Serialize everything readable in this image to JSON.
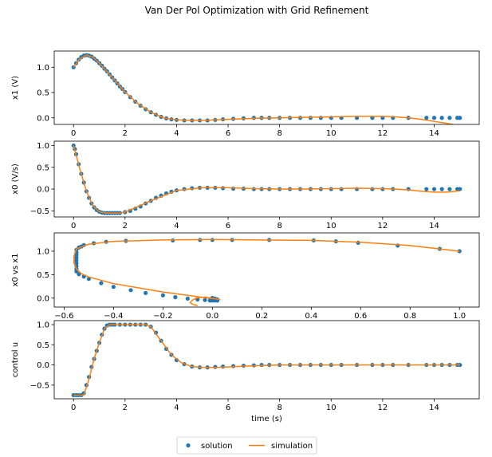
{
  "figure": {
    "title": "Van Der Pol Optimization with Grid Refinement",
    "legend": [
      {
        "label": "solution",
        "kind": "marker",
        "color": "#1f77b4"
      },
      {
        "label": "simulation",
        "kind": "line",
        "color": "#ff7f0e"
      }
    ],
    "legend_placement": "bottom-center"
  },
  "colors": {
    "solution": "#1f77b4",
    "simulation": "#ff7f0e",
    "axes": "#000000"
  },
  "chart_data": [
    {
      "type": "scatter",
      "ylabel": "x1 (V)",
      "xlabel": "",
      "xlim": [
        -0.75,
        15.75
      ],
      "ylim": [
        -0.13,
        1.32
      ],
      "xticks": [
        0,
        2,
        4,
        6,
        8,
        10,
        12,
        14
      ],
      "yticks": [
        0.0,
        0.5,
        1.0
      ],
      "ytick_labels": [
        "0.0",
        "0.5",
        "1.0"
      ],
      "series": [
        {
          "name": "solution",
          "style": "markers",
          "x": [
            0,
            0.1,
            0.2,
            0.3,
            0.4,
            0.5,
            0.6,
            0.7,
            0.8,
            0.9,
            1.0,
            1.1,
            1.2,
            1.3,
            1.4,
            1.5,
            1.6,
            1.7,
            1.8,
            1.9,
            2.0,
            2.2,
            2.4,
            2.6,
            2.8,
            3.0,
            3.2,
            3.4,
            3.6,
            3.8,
            4.0,
            4.3,
            4.6,
            4.9,
            5.2,
            5.5,
            5.8,
            6.2,
            6.6,
            7.0,
            7.3,
            7.6,
            8.0,
            8.4,
            8.8,
            9.2,
            9.6,
            10.0,
            10.4,
            11.0,
            11.6,
            12.0,
            12.4,
            13.0,
            13.7,
            14.0,
            14.3,
            14.6,
            14.9,
            15.0
          ],
          "y": [
            1.0,
            1.08,
            1.15,
            1.2,
            1.23,
            1.24,
            1.23,
            1.21,
            1.17,
            1.13,
            1.08,
            1.03,
            0.97,
            0.92,
            0.86,
            0.8,
            0.74,
            0.68,
            0.62,
            0.57,
            0.51,
            0.41,
            0.32,
            0.24,
            0.17,
            0.11,
            0.06,
            0.02,
            -0.01,
            -0.03,
            -0.04,
            -0.05,
            -0.05,
            -0.05,
            -0.05,
            -0.04,
            -0.03,
            -0.02,
            -0.01,
            0.0,
            0.0,
            0.0,
            0.0,
            0.0,
            0.0,
            0.0,
            0.0,
            0.0,
            0.0,
            0.0,
            0.0,
            0.0,
            0.0,
            0.0,
            0.0,
            0.0,
            0.0,
            0.0,
            0.0,
            0.0
          ]
        },
        {
          "name": "simulation",
          "style": "line",
          "x": [
            0,
            0.25,
            0.5,
            0.75,
            1.0,
            1.5,
            2.0,
            2.5,
            3.0,
            3.5,
            4.0,
            4.5,
            5.0,
            6.0,
            7.0,
            8.0,
            9.0,
            10.0,
            11.0,
            12.0,
            12.5,
            13.0,
            13.5,
            14.0,
            14.5,
            15.0
          ],
          "y": [
            1.0,
            1.17,
            1.24,
            1.2,
            1.08,
            0.8,
            0.51,
            0.28,
            0.11,
            0.0,
            -0.04,
            -0.05,
            -0.05,
            -0.03,
            -0.01,
            0.0,
            0.01,
            0.02,
            0.03,
            0.03,
            0.02,
            0.0,
            -0.03,
            -0.07,
            -0.11,
            -0.16
          ]
        }
      ]
    },
    {
      "type": "scatter",
      "ylabel": "x0 (V/s)",
      "xlabel": "",
      "xlim": [
        -0.75,
        15.75
      ],
      "ylim": [
        -0.64,
        1.1
      ],
      "xticks": [
        0,
        2,
        4,
        6,
        8,
        10,
        12,
        14
      ],
      "yticks": [
        -0.5,
        0.0,
        0.5,
        1.0
      ],
      "ytick_labels": [
        "−0.5",
        "0.0",
        "0.5",
        "1.0"
      ],
      "series": [
        {
          "name": "solution",
          "style": "markers",
          "x": [
            0,
            0.05,
            0.1,
            0.2,
            0.3,
            0.4,
            0.5,
            0.6,
            0.7,
            0.8,
            0.9,
            1.0,
            1.1,
            1.2,
            1.3,
            1.4,
            1.5,
            1.6,
            1.7,
            1.8,
            2.0,
            2.2,
            2.4,
            2.6,
            2.8,
            3.0,
            3.2,
            3.4,
            3.6,
            3.8,
            4.0,
            4.3,
            4.6,
            4.9,
            5.2,
            5.5,
            5.8,
            6.2,
            6.6,
            7.0,
            7.3,
            7.6,
            8.0,
            8.4,
            8.8,
            9.2,
            9.6,
            10.0,
            10.4,
            11.0,
            11.6,
            12.0,
            12.4,
            13.0,
            13.7,
            14.0,
            14.3,
            14.6,
            14.9,
            15.0
          ],
          "y": [
            1.0,
            0.92,
            0.8,
            0.57,
            0.35,
            0.15,
            -0.05,
            -0.2,
            -0.33,
            -0.42,
            -0.48,
            -0.52,
            -0.54,
            -0.55,
            -0.55,
            -0.55,
            -0.55,
            -0.55,
            -0.55,
            -0.55,
            -0.53,
            -0.5,
            -0.45,
            -0.4,
            -0.33,
            -0.27,
            -0.2,
            -0.15,
            -0.1,
            -0.06,
            -0.03,
            0.0,
            0.02,
            0.03,
            0.03,
            0.03,
            0.02,
            0.01,
            0.01,
            0.0,
            0.0,
            0.0,
            0.0,
            0.0,
            0.0,
            0.0,
            0.0,
            0.0,
            0.0,
            0.0,
            0.0,
            0.0,
            0.0,
            0.0,
            0.0,
            0.0,
            0.0,
            0.0,
            0.0,
            0.0
          ]
        },
        {
          "name": "simulation",
          "style": "line",
          "x": [
            0,
            0.25,
            0.5,
            0.75,
            1.0,
            1.25,
            1.5,
            1.75,
            2.0,
            2.5,
            3.0,
            3.5,
            4.0,
            5.0,
            6.0,
            7.0,
            8.0,
            9.0,
            10.0,
            11.0,
            12.0,
            12.5,
            13.0,
            13.5,
            14.0,
            14.5,
            15.0
          ],
          "y": [
            1.0,
            0.45,
            -0.05,
            -0.38,
            -0.52,
            -0.55,
            -0.55,
            -0.55,
            -0.53,
            -0.4,
            -0.27,
            -0.15,
            -0.03,
            0.03,
            0.03,
            0.01,
            0.0,
            0.0,
            0.01,
            0.02,
            0.01,
            0.0,
            -0.02,
            -0.05,
            -0.07,
            -0.07,
            -0.04
          ]
        }
      ]
    },
    {
      "type": "scatter",
      "ylabel": "x0 vs x1",
      "xlabel": "",
      "xlim": [
        -0.64,
        1.08
      ],
      "ylim": [
        -0.19,
        1.39
      ],
      "xticks": [
        -0.6,
        -0.4,
        -0.2,
        0.0,
        0.2,
        0.4,
        0.6,
        0.8,
        1.0
      ],
      "xtick_labels": [
        "−0.6",
        "−0.4",
        "−0.2",
        "0.0",
        "0.2",
        "0.4",
        "0.6",
        "0.8",
        "1.0"
      ],
      "yticks": [
        0.0,
        0.5,
        1.0
      ],
      "ytick_labels": [
        "0.0",
        "0.5",
        "1.0"
      ],
      "series": [
        {
          "name": "solution",
          "style": "markers",
          "x": [
            1.0,
            0.92,
            0.75,
            0.59,
            0.5,
            0.41,
            0.23,
            0.08,
            0.0,
            -0.05,
            -0.16,
            -0.35,
            -0.43,
            -0.48,
            -0.52,
            -0.53,
            -0.54,
            -0.55,
            -0.55,
            -0.55,
            -0.55,
            -0.55,
            -0.55,
            -0.55,
            -0.55,
            -0.55,
            -0.54,
            -0.52,
            -0.5,
            -0.45,
            -0.4,
            -0.33,
            -0.27,
            -0.2,
            -0.15,
            -0.1,
            -0.06,
            -0.03,
            -0.01,
            0.0,
            0.01,
            0.02,
            0.02,
            0.02,
            0.02,
            0.02,
            0.01,
            0.01,
            0.0,
            0.0,
            0.0,
            0.0,
            0.0,
            0.0,
            0.0,
            0.0,
            0.0,
            0.0
          ],
          "y": [
            1.0,
            1.05,
            1.12,
            1.18,
            1.21,
            1.23,
            1.24,
            1.24,
            1.24,
            1.24,
            1.23,
            1.22,
            1.2,
            1.17,
            1.13,
            1.1,
            1.08,
            1.03,
            0.97,
            0.92,
            0.86,
            0.8,
            0.74,
            0.68,
            0.62,
            0.57,
            0.51,
            0.46,
            0.41,
            0.32,
            0.24,
            0.17,
            0.11,
            0.06,
            0.02,
            -0.01,
            -0.03,
            -0.04,
            -0.05,
            -0.05,
            -0.05,
            -0.05,
            -0.04,
            -0.04,
            -0.03,
            -0.03,
            -0.02,
            -0.01,
            -0.01,
            0.0,
            0.0,
            0.0,
            0.0,
            0.0,
            0.0,
            0.0,
            0.0,
            0.0
          ]
        },
        {
          "name": "simulation",
          "style": "line",
          "x": [
            1.0,
            0.8,
            0.6,
            0.4,
            0.2,
            0.0,
            -0.2,
            -0.4,
            -0.5,
            -0.55,
            -0.56,
            -0.56,
            -0.55,
            -0.53,
            -0.5,
            -0.45,
            -0.4,
            -0.3,
            -0.2,
            -0.1,
            -0.03,
            0.02,
            0.03,
            0.02,
            0.0,
            -0.03,
            -0.06,
            -0.08,
            -0.09,
            -0.08,
            -0.06
          ],
          "y": [
            1.0,
            1.12,
            1.19,
            1.23,
            1.24,
            1.25,
            1.24,
            1.21,
            1.15,
            1.05,
            0.9,
            0.75,
            0.62,
            0.52,
            0.45,
            0.38,
            0.31,
            0.22,
            0.13,
            0.06,
            0.01,
            -0.02,
            -0.03,
            -0.02,
            0.0,
            0.02,
            0.01,
            -0.04,
            -0.09,
            -0.13,
            -0.16
          ]
        }
      ]
    },
    {
      "type": "scatter",
      "ylabel": "control u",
      "xlabel": "time (s)",
      "xlim": [
        -0.75,
        15.75
      ],
      "ylim": [
        -0.84,
        1.1
      ],
      "xticks": [
        0,
        2,
        4,
        6,
        8,
        10,
        12,
        14
      ],
      "yticks": [
        -0.5,
        0.0,
        0.5,
        1.0
      ],
      "ytick_labels": [
        "−0.5",
        "0.0",
        "0.5",
        "1.0"
      ],
      "series": [
        {
          "name": "solution",
          "style": "markers",
          "x": [
            0,
            0.1,
            0.2,
            0.3,
            0.4,
            0.5,
            0.6,
            0.7,
            0.8,
            0.9,
            1.0,
            1.1,
            1.2,
            1.3,
            1.4,
            1.5,
            1.6,
            1.8,
            2.0,
            2.2,
            2.4,
            2.6,
            2.8,
            3.0,
            3.2,
            3.4,
            3.6,
            3.8,
            4.0,
            4.3,
            4.6,
            4.9,
            5.2,
            5.5,
            5.8,
            6.2,
            6.6,
            7.0,
            7.3,
            7.6,
            8.0,
            8.4,
            8.8,
            9.2,
            9.6,
            10.0,
            10.4,
            11.0,
            11.6,
            12.0,
            12.4,
            13.0,
            13.7,
            14.0,
            14.3,
            14.6,
            14.9,
            15.0
          ],
          "y": [
            -0.75,
            -0.75,
            -0.75,
            -0.75,
            -0.7,
            -0.5,
            -0.3,
            -0.05,
            0.15,
            0.35,
            0.55,
            0.75,
            0.9,
            0.98,
            1.0,
            1.0,
            1.0,
            1.0,
            1.0,
            1.0,
            1.0,
            1.0,
            1.0,
            0.95,
            0.8,
            0.6,
            0.4,
            0.25,
            0.12,
            0.02,
            -0.04,
            -0.06,
            -0.06,
            -0.05,
            -0.04,
            -0.03,
            -0.02,
            -0.01,
            0.0,
            0.0,
            0.0,
            0.0,
            0.0,
            0.0,
            0.0,
            0.0,
            0.0,
            0.0,
            0.0,
            0.0,
            0.0,
            0.0,
            0.0,
            0.0,
            0.0,
            0.0,
            0.0,
            0.0
          ]
        },
        {
          "name": "simulation",
          "style": "line",
          "x": [
            0,
            0.4,
            0.6,
            0.8,
            1.0,
            1.2,
            1.4,
            2.8,
            3.0,
            3.4,
            3.8,
            4.2,
            4.6,
            5.0,
            5.5,
            6.0,
            7.0,
            8.0,
            9.0,
            10.0,
            11.0,
            12.0,
            13.0,
            14.0,
            15.0
          ],
          "y": [
            -0.75,
            -0.75,
            -0.35,
            0.15,
            0.55,
            0.9,
            1.0,
            1.0,
            0.95,
            0.6,
            0.25,
            0.05,
            -0.04,
            -0.06,
            -0.06,
            -0.05,
            -0.02,
            0.0,
            0.0,
            0.0,
            0.0,
            0.0,
            0.0,
            0.0,
            0.0
          ]
        }
      ]
    }
  ]
}
